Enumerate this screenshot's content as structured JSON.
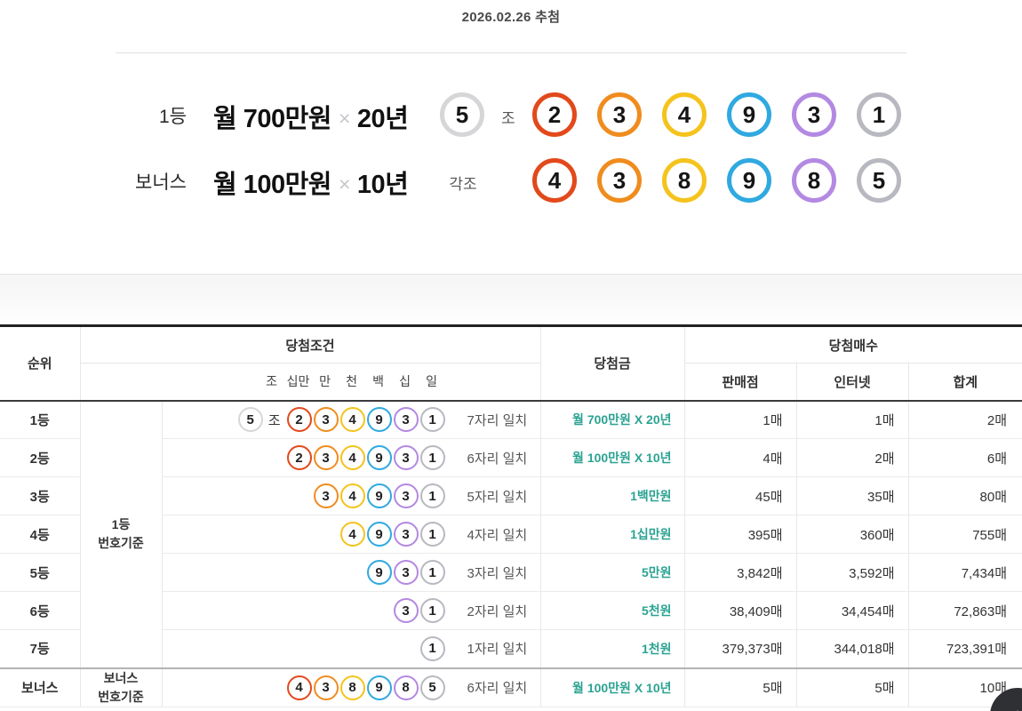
{
  "page": {
    "draw_date": "2026.02.26 추첨"
  },
  "results": {
    "first": {
      "rank_label": "1등",
      "prize_amount": "월 700만원",
      "times_symbol": "×",
      "prize_period": "20년",
      "group_number": "5",
      "group_label": "조",
      "digits": [
        "2",
        "3",
        "4",
        "9",
        "3",
        "1"
      ]
    },
    "bonus": {
      "rank_label": "보너스",
      "prize_amount": "월 100만원",
      "times_symbol": "×",
      "prize_period": "10년",
      "group_label": "각조",
      "digits": [
        "4",
        "3",
        "8",
        "9",
        "8",
        "5"
      ]
    }
  },
  "colors": {
    "ball_position_1_red": "#e2491b",
    "ball_position_2_orange": "#f08c1e",
    "ball_position_3_yellow": "#f5c31d",
    "ball_position_4_blue": "#2fa9e0",
    "ball_position_5_purple": "#b389e2",
    "ball_position_6_gray": "#b8b8c1",
    "ball_group_gray": "#d6d6d9",
    "prize_text_teal": "#2ba392"
  },
  "table": {
    "headers": {
      "rank": "순위",
      "condition": "당첨조건",
      "digit_places": [
        "조",
        "십만",
        "만",
        "천",
        "백",
        "십",
        "일"
      ],
      "prize": "당첨금",
      "win_count": "당첨매수",
      "store": "판매점",
      "internet": "인터넷",
      "total": "합계"
    },
    "basis": {
      "first_line1": "1등",
      "first_line2": "번호기준",
      "bonus_line1": "보너스",
      "bonus_line2": "번호기준"
    },
    "rows": [
      {
        "rank": "1등",
        "group": "5",
        "group_label": "조",
        "digits": [
          "2",
          "3",
          "4",
          "9",
          "3",
          "1"
        ],
        "match": "7자리 일치",
        "prize": "월 700만원 X 20년",
        "store": "1매",
        "internet": "1매",
        "total": "2매"
      },
      {
        "rank": "2등",
        "digits": [
          "2",
          "3",
          "4",
          "9",
          "3",
          "1"
        ],
        "match": "6자리 일치",
        "prize": "월 100만원 X 10년",
        "store": "4매",
        "internet": "2매",
        "total": "6매"
      },
      {
        "rank": "3등",
        "digits": [
          "3",
          "4",
          "9",
          "3",
          "1"
        ],
        "match": "5자리 일치",
        "prize": "1백만원",
        "store": "45매",
        "internet": "35매",
        "total": "80매"
      },
      {
        "rank": "4등",
        "digits": [
          "4",
          "9",
          "3",
          "1"
        ],
        "match": "4자리 일치",
        "prize": "1십만원",
        "store": "395매",
        "internet": "360매",
        "total": "755매"
      },
      {
        "rank": "5등",
        "digits": [
          "9",
          "3",
          "1"
        ],
        "match": "3자리 일치",
        "prize": "5만원",
        "store": "3,842매",
        "internet": "3,592매",
        "total": "7,434매"
      },
      {
        "rank": "6등",
        "digits": [
          "3",
          "1"
        ],
        "match": "2자리 일치",
        "prize": "5천원",
        "store": "38,409매",
        "internet": "34,454매",
        "total": "72,863매"
      },
      {
        "rank": "7등",
        "digits": [
          "1"
        ],
        "match": "1자리 일치",
        "prize": "1천원",
        "store": "379,373매",
        "internet": "344,018매",
        "total": "723,391매"
      },
      {
        "rank": "보너스",
        "digits": [
          "4",
          "3",
          "8",
          "9",
          "8",
          "5"
        ],
        "match": "6자리 일치",
        "prize": "월 100만원 X 10년",
        "store": "5매",
        "internet": "5매",
        "total": "10매"
      }
    ]
  },
  "scroll_top_button": {
    "icon_glyph": "↑"
  }
}
